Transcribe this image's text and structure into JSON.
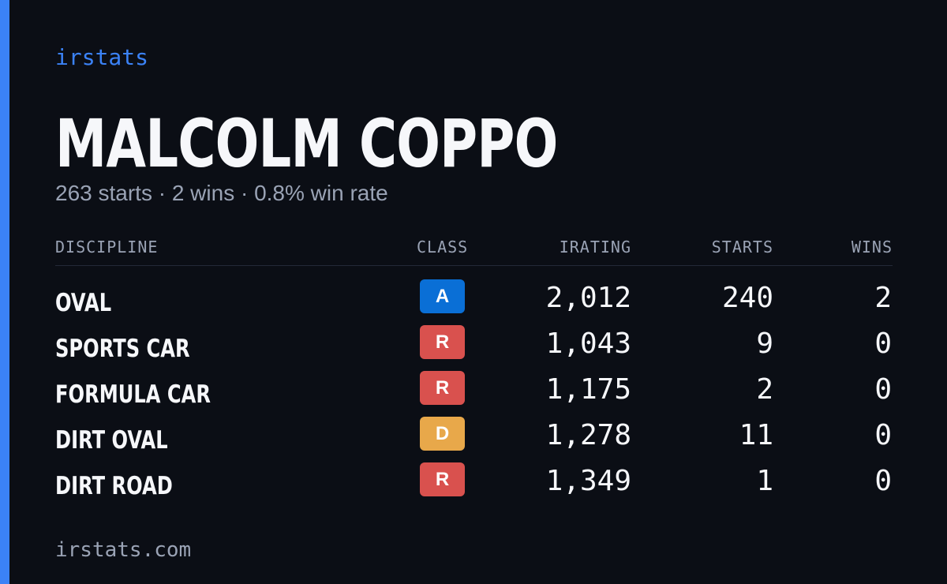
{
  "brand": "irstats",
  "player": {
    "name": "MALCOLM COPPO",
    "summary": "263 starts · 2 wins · 0.8% win rate"
  },
  "table": {
    "headers": {
      "discipline": "DISCIPLINE",
      "class": "CLASS",
      "irating": "IRATING",
      "starts": "STARTS",
      "wins": "WINS"
    },
    "rows": [
      {
        "discipline": "OVAL",
        "class": "A",
        "class_color": "#0a6fd6",
        "irating": "2,012",
        "starts": "240",
        "wins": "2"
      },
      {
        "discipline": "SPORTS CAR",
        "class": "R",
        "class_color": "#d9514e",
        "irating": "1,043",
        "starts": "9",
        "wins": "0"
      },
      {
        "discipline": "FORMULA CAR",
        "class": "R",
        "class_color": "#d9514e",
        "irating": "1,175",
        "starts": "2",
        "wins": "0"
      },
      {
        "discipline": "DIRT OVAL",
        "class": "D",
        "class_color": "#e8a84a",
        "irating": "1,278",
        "starts": "11",
        "wins": "0"
      },
      {
        "discipline": "DIRT ROAD",
        "class": "R",
        "class_color": "#d9514e",
        "irating": "1,349",
        "starts": "1",
        "wins": "0"
      }
    ]
  },
  "footer": "irstats.com",
  "colors": {
    "accent": "#3b82f6",
    "background": "#0b0e15",
    "muted_text": "#9aa3b5"
  }
}
